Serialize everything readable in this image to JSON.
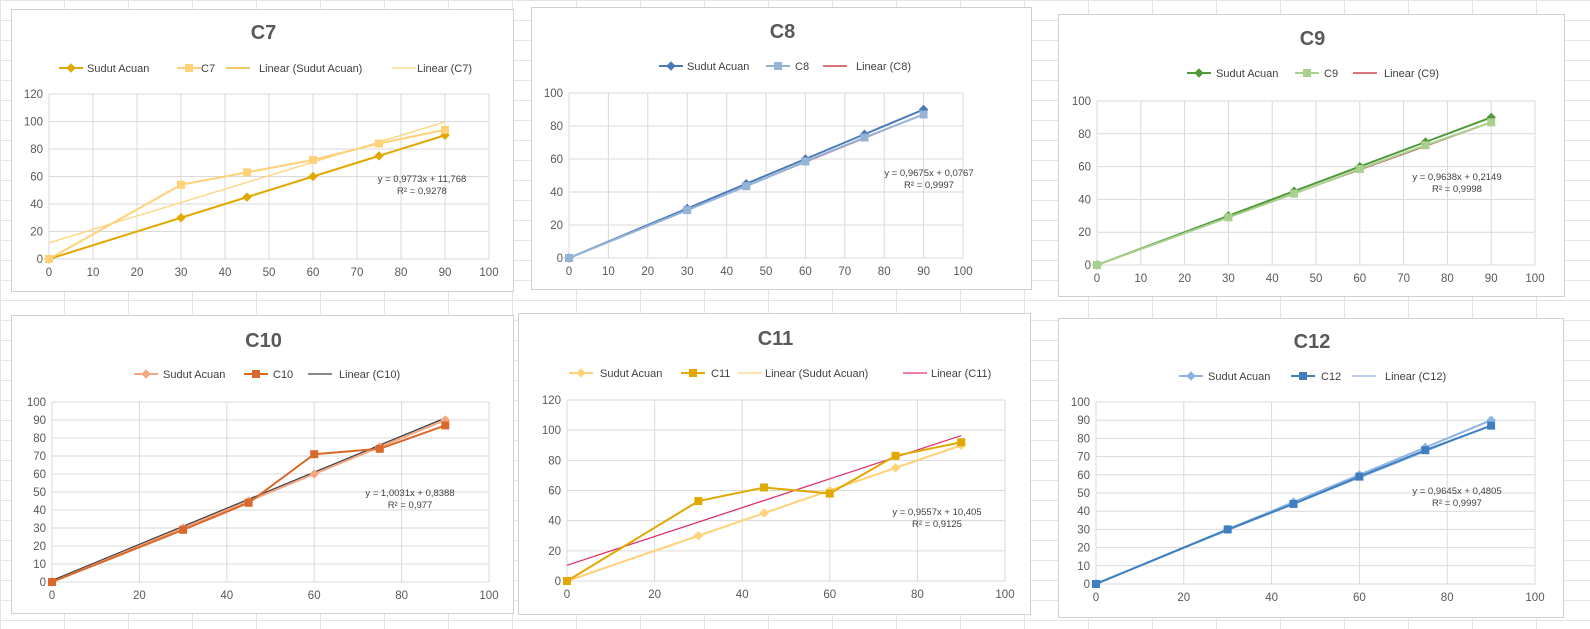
{
  "chart_data": [
    {
      "id": "c7",
      "type": "line",
      "title": "C7",
      "xlim": [
        0,
        100
      ],
      "ylim": [
        0,
        120
      ],
      "xstep": 10,
      "ystep": 20,
      "grid": true,
      "legend_position": "top",
      "legend": [
        "Sudut Acuan",
        "C7",
        "Linear (Sudut Acuan)",
        "Linear (C7)"
      ],
      "series": [
        {
          "name": "Sudut Acuan",
          "color": "#e0a800",
          "marker": "diamond",
          "x": [
            0,
            30,
            45,
            60,
            75,
            90
          ],
          "y": [
            0,
            30,
            45,
            60,
            75,
            90
          ]
        },
        {
          "name": "C7",
          "color": "#ffd27a",
          "marker": "square",
          "x": [
            0,
            30,
            45,
            60,
            75,
            90
          ],
          "y": [
            0,
            54,
            63,
            72,
            84,
            94
          ]
        }
      ],
      "trendlines": [
        {
          "name": "Linear (Sudut Acuan)",
          "color": "#e0a800",
          "slope": 1,
          "intercept": 0
        },
        {
          "name": "Linear (C7)",
          "color": "#ffd27a",
          "slope": 0.9773,
          "intercept": 11.768
        }
      ],
      "equation": [
        "y = 0,9773x + 11,768",
        "R² = 0,9278"
      ]
    },
    {
      "id": "c8",
      "type": "line",
      "title": "C8",
      "xlim": [
        0,
        100
      ],
      "ylim": [
        0,
        100
      ],
      "xstep": 10,
      "ystep": 20,
      "grid": true,
      "legend_position": "top",
      "legend": [
        "Sudut Acuan",
        "C8",
        "Linear (C8)"
      ],
      "series": [
        {
          "name": "Sudut Acuan",
          "color": "#4a7ab8",
          "marker": "diamond",
          "x": [
            0,
            30,
            45,
            60,
            75,
            90
          ],
          "y": [
            0,
            30,
            45,
            60,
            75,
            90
          ]
        },
        {
          "name": "C8",
          "color": "#95b3d7",
          "marker": "square",
          "x": [
            0,
            30,
            45,
            60,
            75,
            90
          ],
          "y": [
            0,
            29,
            43.5,
            58.5,
            73,
            87
          ]
        }
      ],
      "trendlines": [
        {
          "name": "Linear (C8)",
          "color": "#c0202a",
          "slope": 0.9675,
          "intercept": 0.0767
        }
      ],
      "equation": [
        "y = 0,9675x + 0,0767",
        "R² = 0,9997"
      ]
    },
    {
      "id": "c9",
      "type": "line",
      "title": "C9",
      "xlim": [
        0,
        100
      ],
      "ylim": [
        0,
        100
      ],
      "xstep": 10,
      "ystep": 20,
      "grid": true,
      "legend_position": "top",
      "legend": [
        "Sudut Acuan",
        "C9",
        "Linear (C9)"
      ],
      "series": [
        {
          "name": "Sudut Acuan",
          "color": "#4f9a3a",
          "marker": "diamond",
          "x": [
            0,
            30,
            45,
            60,
            75,
            90
          ],
          "y": [
            0,
            30,
            45,
            60,
            75,
            90
          ]
        },
        {
          "name": "C9",
          "color": "#a9d08e",
          "marker": "square",
          "x": [
            0,
            30,
            45,
            60,
            75,
            90
          ],
          "y": [
            0,
            29,
            43.5,
            58.5,
            73,
            87
          ]
        }
      ],
      "trendlines": [
        {
          "name": "Linear (C9)",
          "color": "#c0202a",
          "slope": 0.9638,
          "intercept": 0.2149
        }
      ],
      "equation": [
        "y = 0,9638x + 0,2149",
        "R² = 0,9998"
      ]
    },
    {
      "id": "c10",
      "type": "line",
      "title": "C10",
      "xlim": [
        0,
        100
      ],
      "ylim": [
        0,
        100
      ],
      "xstep": 20,
      "ystep": 10,
      "grid": true,
      "legend_position": "top",
      "legend": [
        "Sudut Acuan",
        "C10",
        "Linear (C10)"
      ],
      "series": [
        {
          "name": "Sudut Acuan",
          "color": "#f4a582",
          "marker": "diamond",
          "x": [
            0,
            30,
            45,
            60,
            75,
            90
          ],
          "y": [
            0,
            30,
            45,
            60,
            75,
            90
          ]
        },
        {
          "name": "C10",
          "color": "#d9692a",
          "marker": "square",
          "x": [
            0,
            30,
            45,
            60,
            75,
            90
          ],
          "y": [
            0,
            29,
            44,
            71,
            74,
            87
          ]
        }
      ],
      "trendlines": [
        {
          "name": "Linear (C10)",
          "color": "#404040",
          "slope": 1.0031,
          "intercept": 0.8388
        }
      ],
      "equation": [
        "y = 1,0031x + 0,8388",
        "R² = 0,977"
      ]
    },
    {
      "id": "c11",
      "type": "line",
      "title": "C11",
      "xlim": [
        0,
        100
      ],
      "ylim": [
        0,
        120
      ],
      "xstep": 20,
      "ystep": 20,
      "grid": true,
      "legend_position": "top",
      "legend": [
        "Sudut Acuan",
        "C11",
        "Linear (Sudut Acuan)",
        "Linear (C11)"
      ],
      "series": [
        {
          "name": "Sudut Acuan",
          "color": "#ffd27a",
          "marker": "diamond",
          "x": [
            0,
            30,
            45,
            60,
            75,
            90
          ],
          "y": [
            0,
            30,
            45,
            60,
            75,
            90
          ]
        },
        {
          "name": "C11",
          "color": "#e0a800",
          "marker": "square",
          "x": [
            0,
            30,
            45,
            60,
            75,
            90
          ],
          "y": [
            0,
            53,
            62,
            58,
            83,
            92
          ]
        }
      ],
      "trendlines": [
        {
          "name": "Linear (Sudut Acuan)",
          "color": "#ffd27a",
          "slope": 1,
          "intercept": 0
        },
        {
          "name": "Linear (C11)",
          "color": "#e0306e",
          "slope": 0.9557,
          "intercept": 10.405
        }
      ],
      "equation": [
        "y = 0,9557x + 10,405",
        "R² = 0,9125"
      ]
    },
    {
      "id": "c12",
      "type": "line",
      "title": "C12",
      "xlim": [
        0,
        100
      ],
      "ylim": [
        0,
        100
      ],
      "xstep": 20,
      "ystep": 10,
      "grid": true,
      "legend_position": "top",
      "legend": [
        "Sudut Acuan",
        "C12",
        "Linear (C12)"
      ],
      "series": [
        {
          "name": "Sudut Acuan",
          "color": "#8db4e2",
          "marker": "diamond",
          "x": [
            0,
            30,
            45,
            60,
            75,
            90
          ],
          "y": [
            0,
            30,
            45,
            60,
            75,
            90
          ]
        },
        {
          "name": "C12",
          "color": "#3f7fbf",
          "marker": "square",
          "x": [
            0,
            30,
            45,
            60,
            75,
            90
          ],
          "y": [
            0,
            30,
            44,
            59,
            73.5,
            87
          ]
        }
      ],
      "trendlines": [
        {
          "name": "Linear (C12)",
          "color": "#8db4e2",
          "slope": 0.9645,
          "intercept": 0.4805
        }
      ],
      "equation": [
        "y = 0,9645x + 0,4805",
        "R² = 0,9997"
      ]
    }
  ]
}
